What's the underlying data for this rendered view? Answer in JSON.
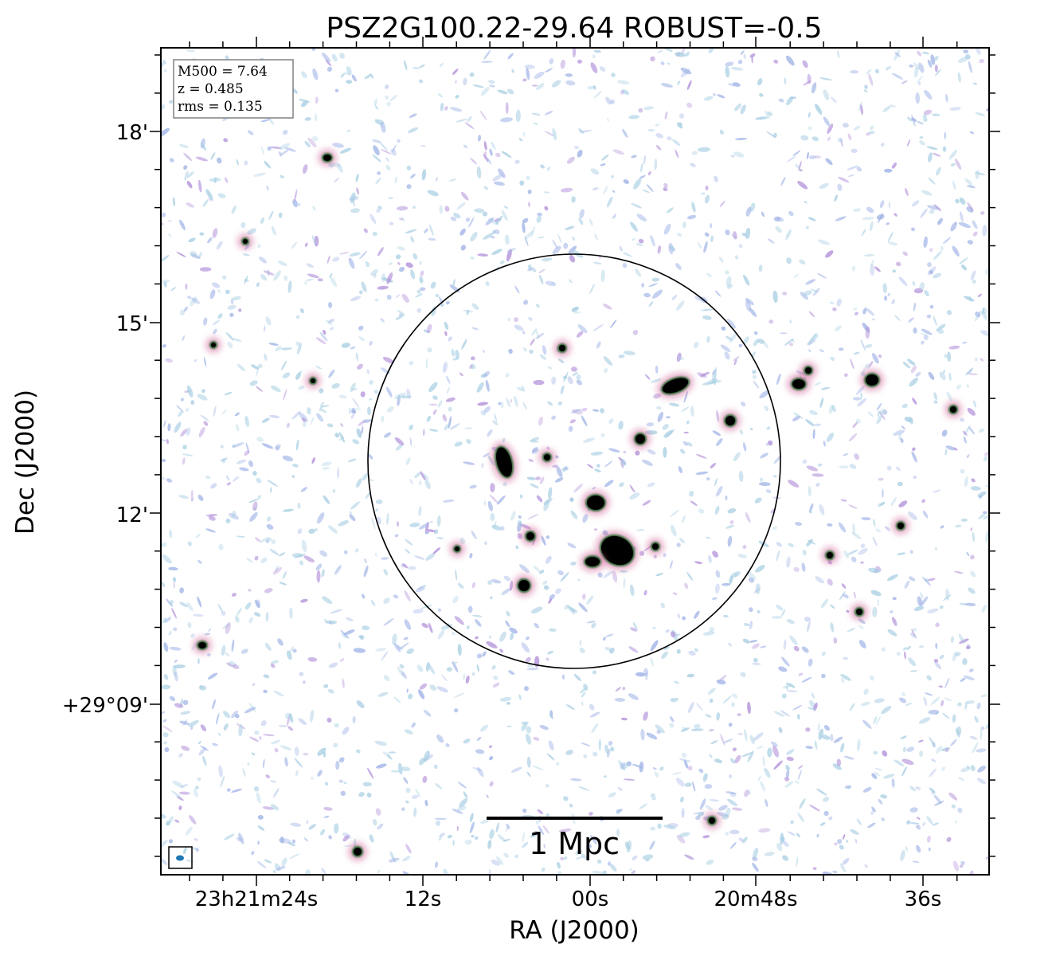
{
  "title": "PSZ2G100.22-29.64 ROBUST=-0.5",
  "xlabel": "RA (J2000)",
  "ylabel": "Dec (J2000)",
  "ra_ticks": [
    "23h21m24s",
    "12s",
    "00s",
    "20m48s",
    "36s"
  ],
  "dec_ticks": [
    "18'",
    "15'",
    "12'",
    "+29°09'"
  ],
  "info_box": {
    "m500": "M500 = 7.64",
    "z": "z = 0.485",
    "rms": "rms = 0.135"
  },
  "scale_bar_label": "1 Mpc",
  "colors": {
    "noise_light": "#a9cfe3",
    "noise_blue": "#9fb3e6",
    "noise_purple": "#b18fd9",
    "source_pink": "#d46fa0",
    "source_green": "#2f6b35",
    "source_core": "#000000",
    "beam": "#1f77b4"
  }
}
